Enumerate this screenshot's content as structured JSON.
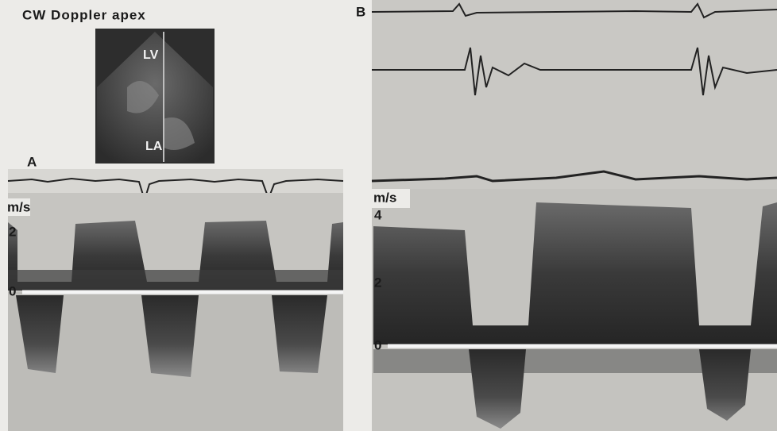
{
  "figure": {
    "echo": {
      "title": "CW Doppler apex",
      "labels": [
        "LV",
        "LA"
      ]
    },
    "panels": [
      {
        "label": "A",
        "unit": "m/s",
        "ticks": [
          2,
          0
        ]
      },
      {
        "label": "B",
        "unit": "m/s",
        "ticks": [
          4,
          2,
          0
        ]
      }
    ]
  }
}
